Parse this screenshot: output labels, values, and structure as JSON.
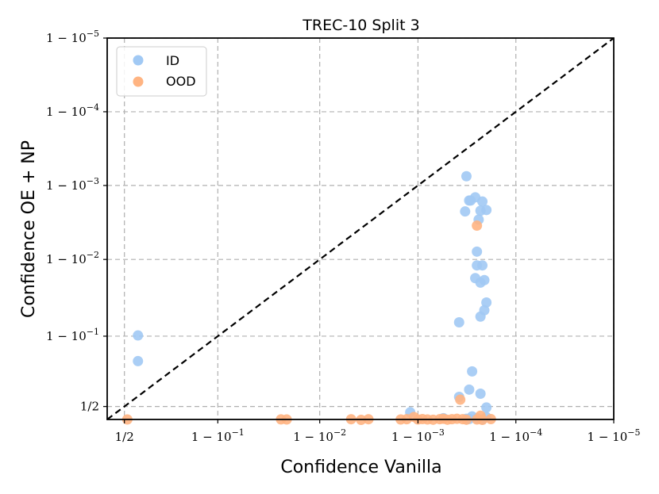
{
  "chart_data": {
    "type": "scatter",
    "title": "TREC-10 Split 3",
    "xlabel": "Confidence Vanilla",
    "ylabel": "Confidence OE + NP",
    "scale": "logit",
    "xlim": [
      0.4,
      0.99999
    ],
    "ylim": [
      0.4,
      0.99999
    ],
    "ticks": [
      {
        "value": 0.5,
        "label": "1/2"
      },
      {
        "value": 0.9,
        "label": "1 − 10^−1"
      },
      {
        "value": 0.99,
        "label": "1 − 10^−2"
      },
      {
        "value": 0.999,
        "label": "1 − 10^−3"
      },
      {
        "value": 0.9999,
        "label": "1 − 10^−4"
      },
      {
        "value": 0.99999,
        "label": "1 − 10^−5"
      }
    ],
    "grid": true,
    "diagonal": true,
    "legend_position": "top-left",
    "colors": {
      "ID": "#a1c9f4",
      "OOD": "#ffb482",
      "diagonal": "#000000"
    },
    "series": [
      {
        "name": "ID",
        "points": [
          [
            0.579,
            0.902
          ],
          [
            0.579,
            0.805
          ],
          [
            0.9988,
            0.455
          ],
          [
            0.99968,
            0.99925
          ],
          [
            0.9997,
            0.9984
          ],
          [
            0.99974,
            0.99855
          ],
          [
            0.99971,
            0.9984
          ],
          [
            0.99978,
            0.99835
          ],
          [
            0.99967,
            0.99775
          ],
          [
            0.9998,
            0.99785
          ],
          [
            0.99977,
            0.9978
          ],
          [
            0.99976,
            0.9971
          ],
          [
            0.99975,
            0.99215
          ],
          [
            0.99975,
            0.98798
          ],
          [
            0.99974,
            0.9822
          ],
          [
            0.99978,
            0.98798
          ],
          [
            0.99977,
            0.9796
          ],
          [
            0.99979,
            0.9811
          ],
          [
            0.9998,
            0.9627
          ],
          [
            0.99979,
            0.9529
          ],
          [
            0.99977,
            0.9432
          ],
          [
            0.99962,
            0.9328
          ],
          [
            0.99972,
            0.7495
          ],
          [
            0.9997,
            0.6291
          ],
          [
            0.99977,
            0.5985
          ],
          [
            0.99962,
            0.5745
          ],
          [
            0.9998,
            0.4924
          ],
          [
            0.99972,
            0.4235
          ],
          [
            0.9998,
            0.4177
          ],
          [
            0.99975,
            0.4084
          ],
          [
            0.9997,
            0.4034
          ],
          [
            0.99978,
            0.4
          ],
          [
            0.99945,
            0.4096
          ],
          [
            0.99968,
            0.405
          ]
        ]
      },
      {
        "name": "OOD",
        "points": [
          [
            0.517,
            0.4
          ],
          [
            0.9755,
            0.4009
          ],
          [
            0.9785,
            0.4
          ],
          [
            0.9952,
            0.4018
          ],
          [
            0.9962,
            0.3972
          ],
          [
            0.9968,
            0.4018
          ],
          [
            0.99975,
            0.9965
          ],
          [
            0.99963,
            0.553
          ],
          [
            0.99977,
            0.4288
          ],
          [
            0.99945,
            0.4052
          ],
          [
            0.9989,
            0.419
          ],
          [
            0.9991,
            0.403
          ],
          [
            0.9993,
            0.398
          ],
          [
            0.9995,
            0.398
          ],
          [
            0.99955,
            0.402
          ],
          [
            0.99965,
            0.402
          ],
          [
            0.99968,
            0.398
          ],
          [
            0.99975,
            0.4
          ],
          [
            0.99982,
            0.403
          ],
          [
            0.99978,
            0.397
          ],
          [
            0.9994,
            0.402
          ],
          [
            0.9992,
            0.4
          ],
          [
            0.999,
            0.4
          ],
          [
            0.9987,
            0.402
          ],
          [
            0.9985,
            0.4
          ],
          [
            0.9996,
            0.405
          ]
        ]
      }
    ]
  }
}
